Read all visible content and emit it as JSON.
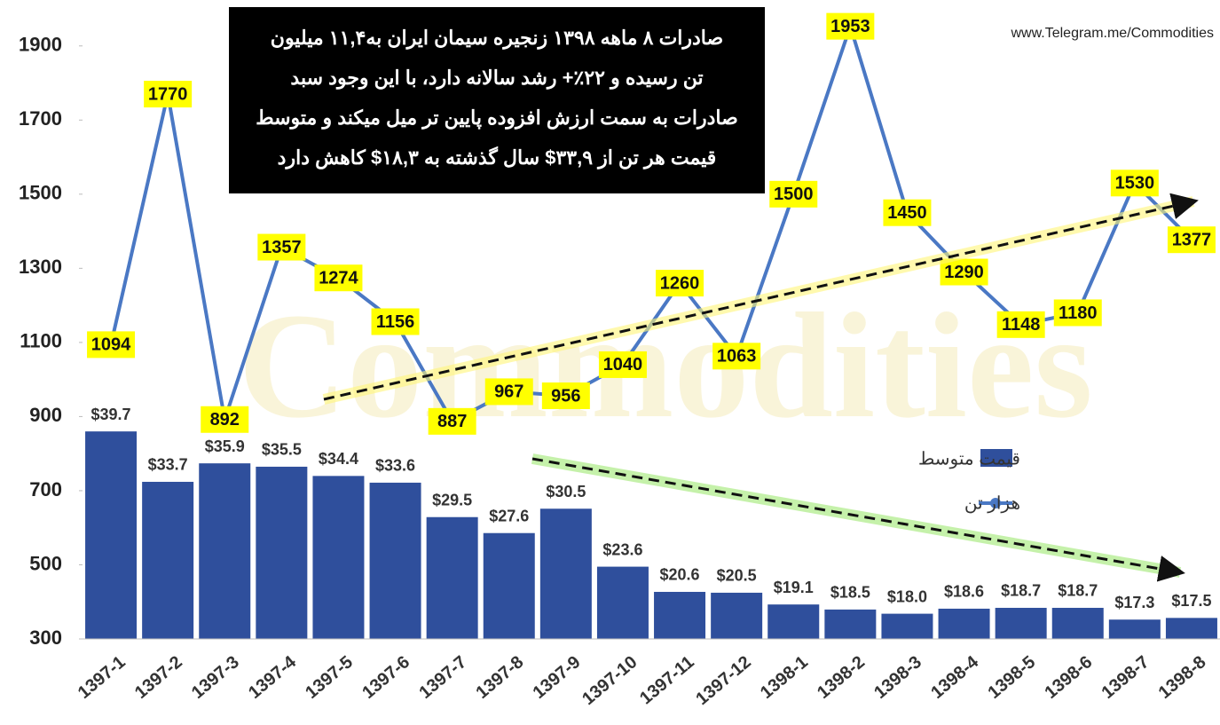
{
  "chart_data": {
    "type": "bar-line",
    "annotation": [
      "صادرات ۸ ماهه ۱۳۹۸ زنجیره سیمان ایران به۱۱,۴ میلیون",
      "تن رسیده و ۲۲٪+ رشد سالانه دارد، با این وجود سبد",
      "صادرات به سمت ارزش افزوده پایین تر میل میکند و متوسط",
      "قیمت هر تن از ۳۳,۹$ سال گذشته به ۱۸,۳$ کاهش دارد"
    ],
    "source": "www.Telegram.me/Commodities",
    "watermark": "Commodities",
    "categories": [
      "1397-1",
      "1397-2",
      "1397-3",
      "1397-4",
      "1397-5",
      "1397-6",
      "1397-7",
      "1397-8",
      "1397-9",
      "1397-10",
      "1397-11",
      "1397-12",
      "1398-1",
      "1398-2",
      "1398-3",
      "1398-4",
      "1398-5",
      "1398-6",
      "1398-7",
      "1398-8"
    ],
    "series": [
      {
        "name": "قیمت متوسط",
        "color": "#2f4f9c",
        "axis": "y2",
        "values": [
          39.7,
          33.7,
          35.9,
          35.5,
          34.4,
          33.6,
          29.5,
          27.6,
          30.5,
          23.6,
          20.6,
          20.5,
          19.1,
          18.5,
          18.0,
          18.6,
          18.7,
          18.7,
          17.3,
          17.5
        ],
        "value_labels": [
          "$39.7",
          "$33.7",
          "$35.9",
          "$35.5",
          "$34.4",
          "$33.6",
          "$29.5",
          "$27.6",
          "$30.5",
          "$23.6",
          "$20.6",
          "$20.5",
          "$19.1",
          "$18.5",
          "$18.0",
          "$18.6",
          "$18.7",
          "$18.7",
          "$17.3",
          "$17.5"
        ]
      },
      {
        "name": "هزار تن",
        "color": "#4a78c4",
        "values": [
          1094,
          1770,
          892,
          1357,
          1274,
          1156,
          887,
          967,
          956,
          1040,
          1260,
          1063,
          1500,
          1953,
          1450,
          1290,
          1148,
          1180,
          1530,
          1377
        ]
      }
    ],
    "ylim": [
      300,
      2000
    ],
    "yticks": [
      300,
      500,
      700,
      900,
      1100,
      1300,
      1500,
      1700,
      1900
    ],
    "y2lim": [
      15,
      90
    ],
    "legend": "right"
  }
}
